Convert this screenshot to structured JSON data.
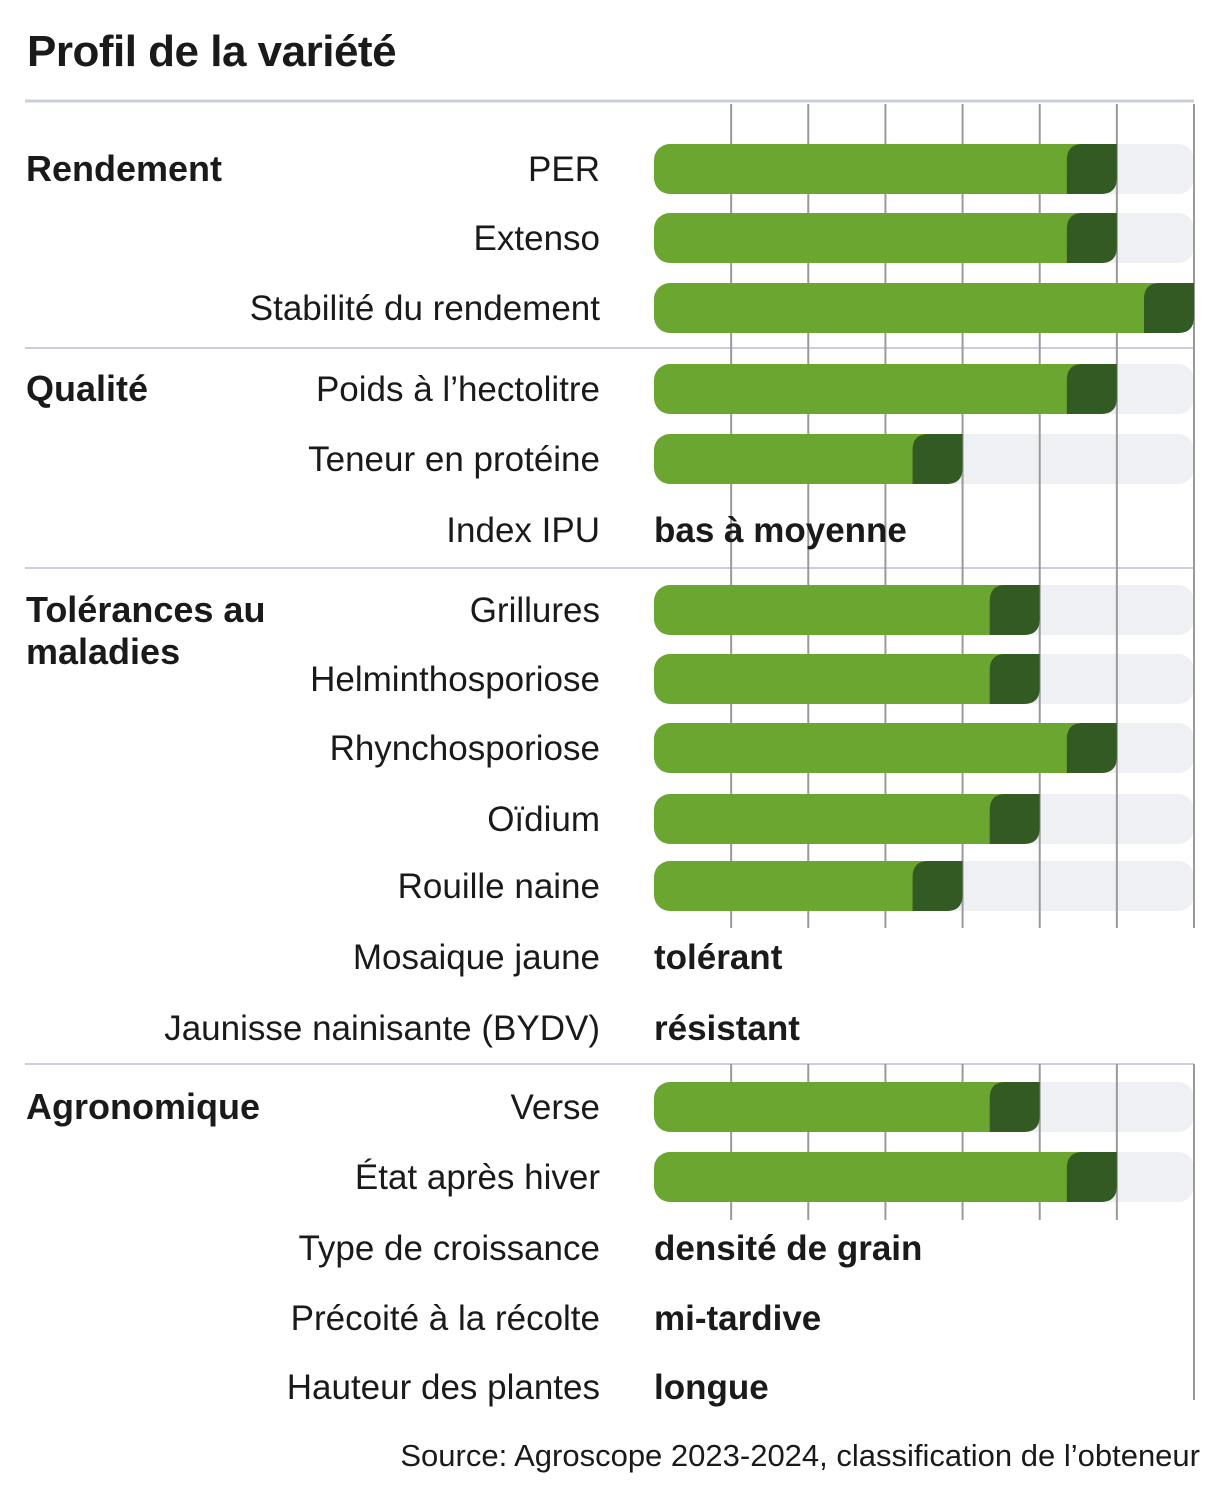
{
  "title": "Profil de la variété",
  "source": "Source: Agroscope 2023-2024, classification de l’obteneur",
  "colors": {
    "bar": "#6aa630",
    "bar_tip": "#345a24",
    "track": "#eff0f4",
    "grid": "#9a9a9a",
    "rule": "#c9cfda"
  },
  "chart_data": {
    "type": "bar",
    "orientation": "horizontal",
    "xlim": [
      0,
      7
    ],
    "grid": true,
    "sections": [
      {
        "label": "Rendement",
        "rows": [
          {
            "label": "PER",
            "value": 6
          },
          {
            "label": "Extenso",
            "value": 6
          },
          {
            "label": "Stabilité du rendement",
            "value": 7
          }
        ]
      },
      {
        "label": "Qualité",
        "rows": [
          {
            "label": "Poids à l’hectolitre",
            "value": 6
          },
          {
            "label": "Teneur en protéine",
            "value": 4
          },
          {
            "label": "Index IPU",
            "text": "bas à moyenne"
          }
        ]
      },
      {
        "label": "Tolérances au maladies",
        "rows": [
          {
            "label": "Grillures",
            "value": 5
          },
          {
            "label": "Helminthosporiose",
            "value": 5
          },
          {
            "label": "Rhynchosporiose",
            "value": 6
          },
          {
            "label": "Oïdium",
            "value": 5
          },
          {
            "label": "Rouille naine",
            "value": 4
          },
          {
            "label": "Mosaique jaune",
            "text": "tolérant"
          },
          {
            "label": "Jaunisse nainisante (BYDV)",
            "text": "résistant"
          }
        ]
      },
      {
        "label": "Agronomique",
        "rows": [
          {
            "label": "Verse",
            "value": 5
          },
          {
            "label": "État après hiver",
            "value": 6
          },
          {
            "label": "Type de croissance",
            "text": "densité de grain"
          },
          {
            "label": "Précoité à la récolte",
            "text": "mi-tardive"
          },
          {
            "label": "Hauteur des plantes",
            "text": "longue"
          }
        ]
      }
    ]
  }
}
